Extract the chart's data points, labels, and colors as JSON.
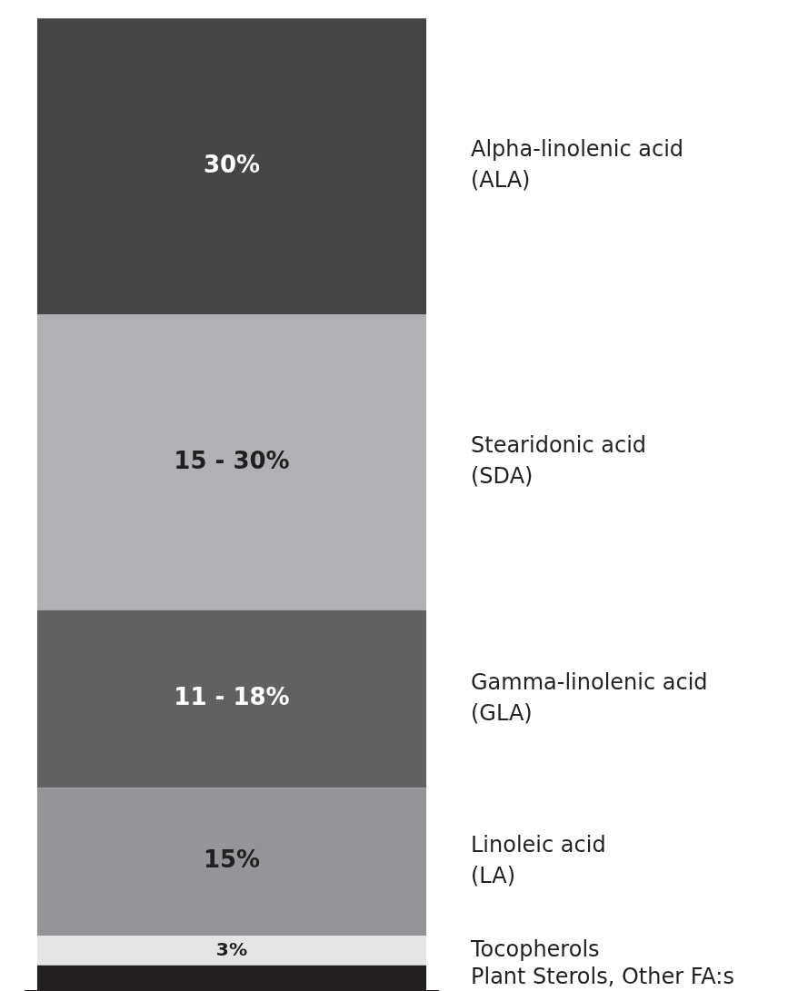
{
  "chart_data": {
    "type": "bar",
    "stacked": true,
    "categories": [
      null
    ],
    "legend": false,
    "grid": false,
    "tick_labels": false,
    "annotations": [
      "11 - 18%",
      "15 - 30%"
    ],
    "series": [
      {
        "name": "Plant Sterols, Other FA:s",
        "color": "#231f20",
        "values": [
          2.6
        ],
        "value_labels": [
          null
        ]
      },
      {
        "name": "Tocopherols",
        "color": "#e5e5e6",
        "values": [
          3
        ],
        "value_labels": [
          "3%"
        ]
      },
      {
        "name": "Linoleic acid\n(LA)",
        "color": "#949598",
        "values": [
          15
        ],
        "value_labels": [
          "15%"
        ]
      },
      {
        "name": "Gamma-linolenic acid\n(GLA)",
        "color": "#616163",
        "values": [
          18
        ]
      },
      {
        "name": "Stearidonic acid\n(SDA)",
        "color": "#b0b1b4",
        "values": [
          30
        ]
      },
      {
        "name": "Alpha-linolenic acid\n(ALA)",
        "color": "#454547",
        "values": [
          30
        ],
        "value_labels": [
          "30%"
        ]
      }
    ]
  }
}
